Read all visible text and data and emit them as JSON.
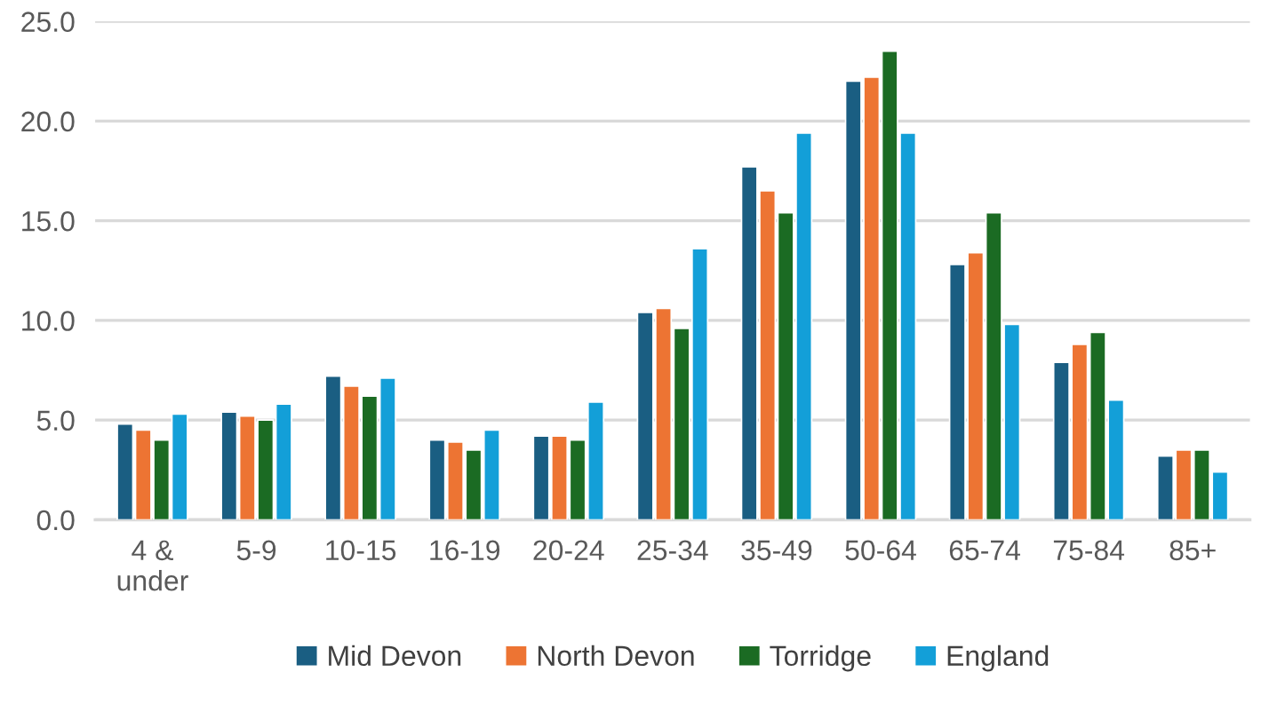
{
  "chart_data": {
    "type": "bar",
    "categories": [
      "4 &\nunder",
      "5-9",
      "10-15",
      "16-19",
      "20-24",
      "25-34",
      "35-49",
      "50-64",
      "65-74",
      "75-84",
      "85+"
    ],
    "series": [
      {
        "name": "Mid Devon",
        "color": "#1a5e82",
        "values": [
          4.8,
          5.4,
          7.2,
          4.0,
          4.2,
          10.4,
          17.7,
          22.0,
          12.8,
          7.9,
          3.2
        ]
      },
      {
        "name": "North Devon",
        "color": "#ed7433",
        "values": [
          4.5,
          5.2,
          6.7,
          3.9,
          4.2,
          10.6,
          16.5,
          22.2,
          13.4,
          8.8,
          3.5
        ]
      },
      {
        "name": "Torridge",
        "color": "#1b6b23",
        "values": [
          4.0,
          5.0,
          6.2,
          3.5,
          4.0,
          9.6,
          15.4,
          23.5,
          15.4,
          9.4,
          3.5
        ]
      },
      {
        "name": "England",
        "color": "#139fd8",
        "values": [
          5.3,
          5.8,
          7.1,
          4.5,
          5.9,
          13.6,
          19.4,
          19.4,
          9.8,
          6.0,
          2.4
        ]
      }
    ],
    "ylim": [
      0,
      25
    ],
    "yticks": [
      {
        "value": 0,
        "label": "0.0"
      },
      {
        "value": 5,
        "label": "5.0"
      },
      {
        "value": 10,
        "label": "10.0"
      },
      {
        "value": 15,
        "label": "15.0"
      },
      {
        "value": 20,
        "label": "20.0"
      },
      {
        "value": 25,
        "label": "25.0"
      }
    ],
    "grid": "y",
    "legend": "bottom"
  }
}
